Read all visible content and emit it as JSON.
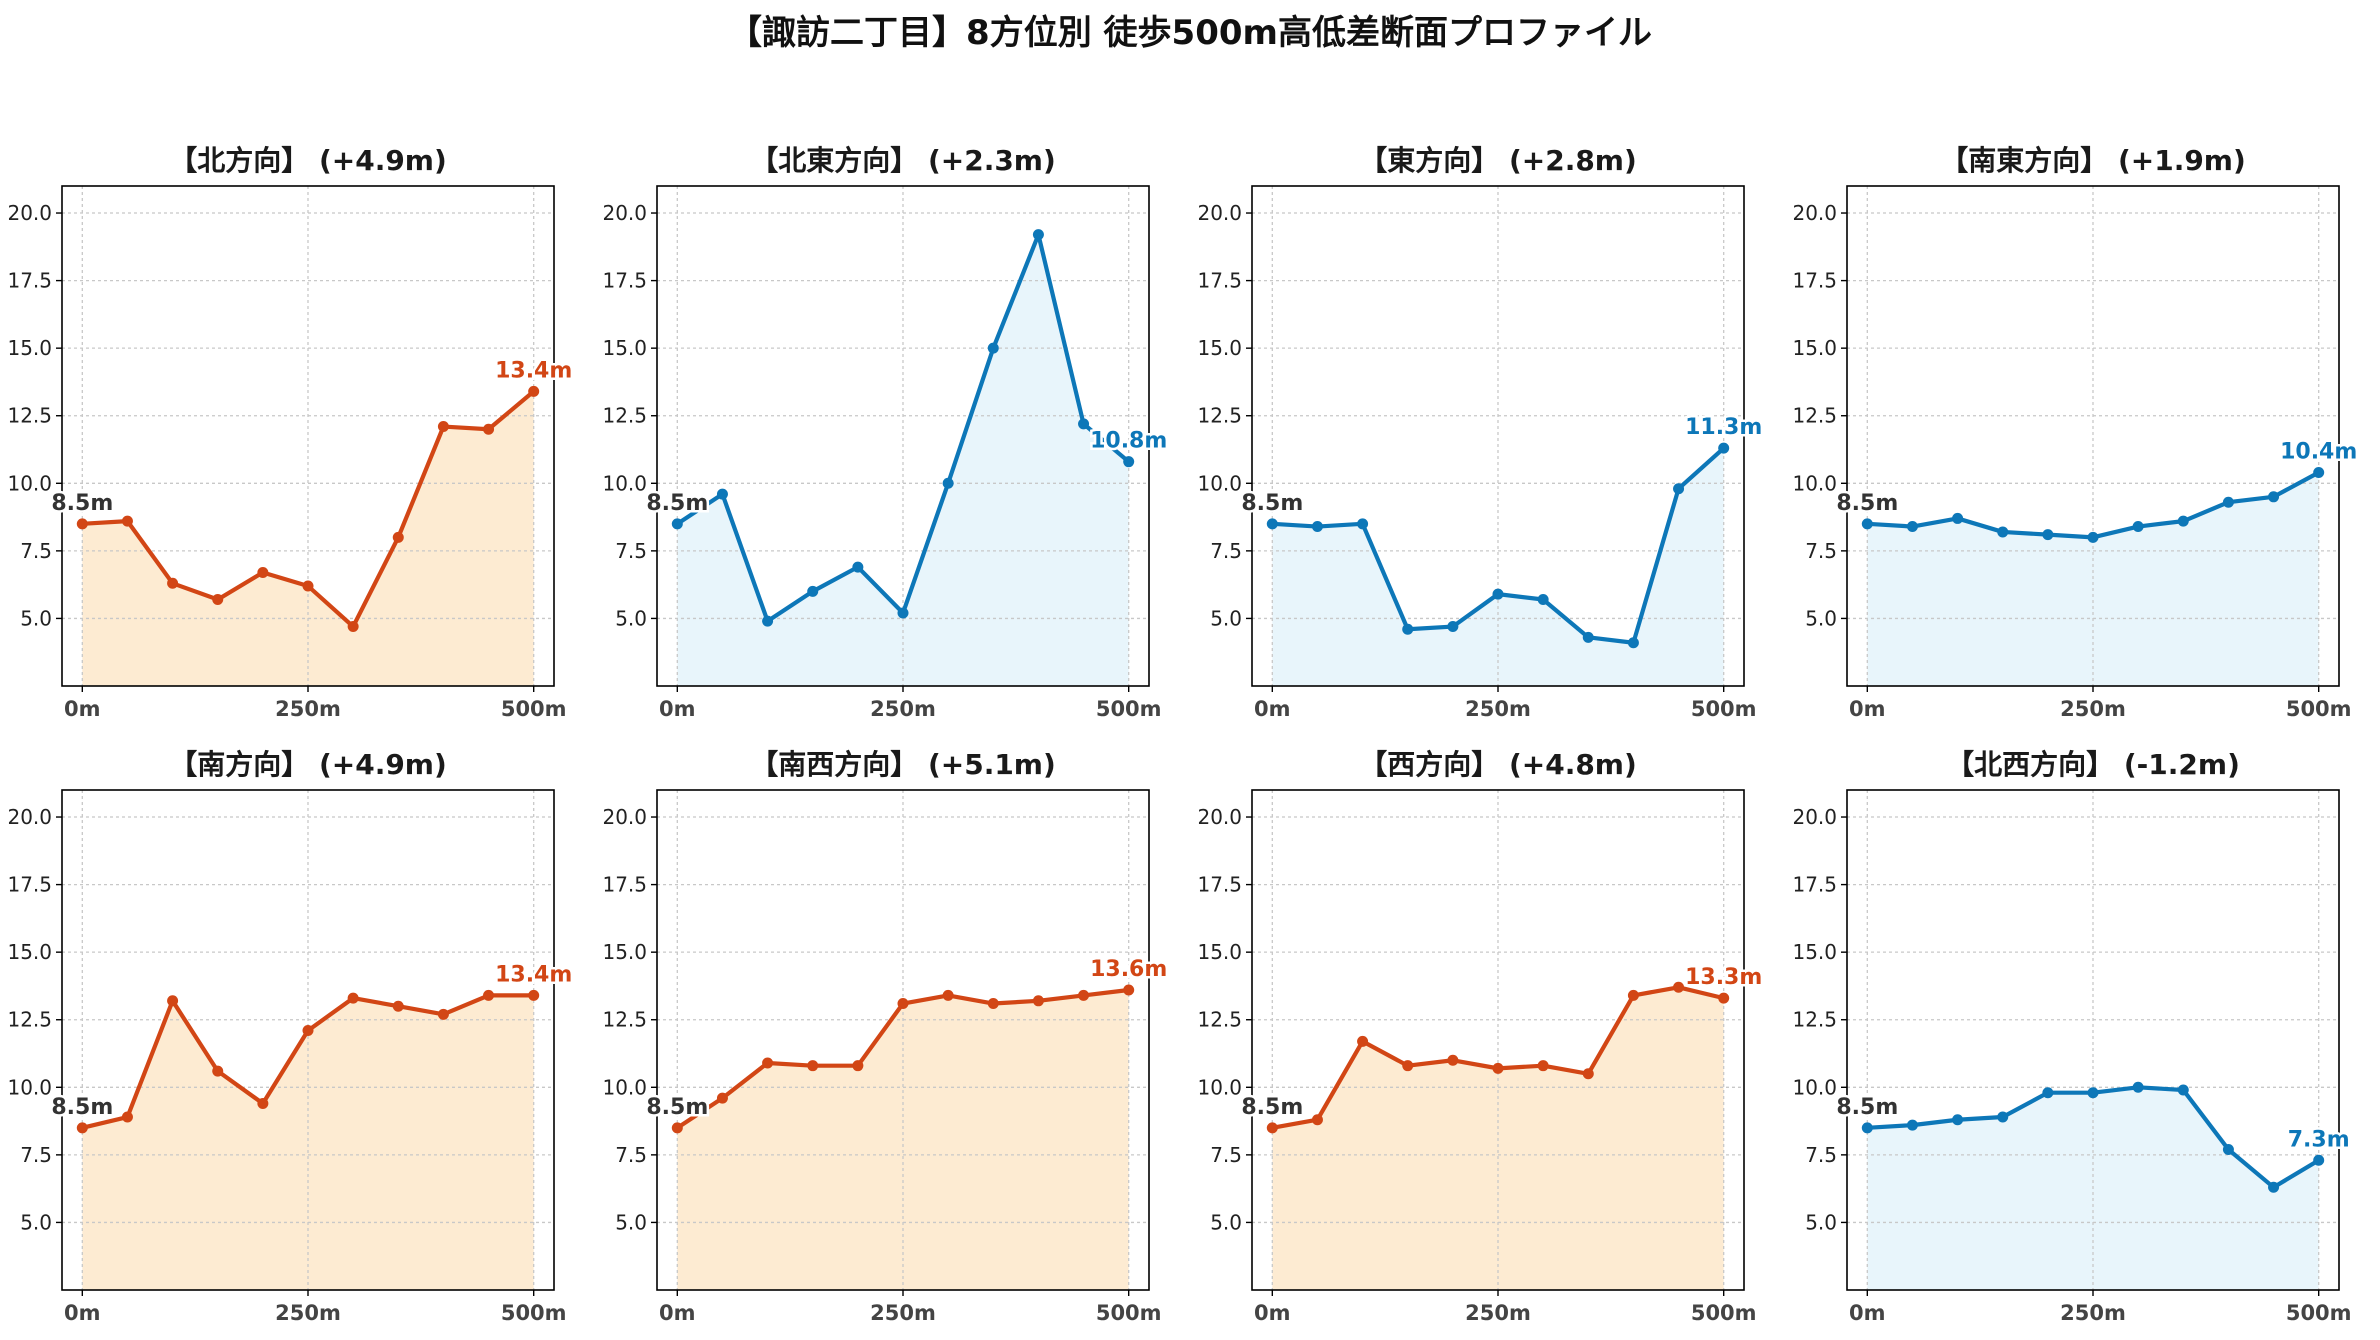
{
  "title": "【諏訪二丁目】8方位別 徒歩500m高低差断面プロファイル",
  "colors": {
    "up_line": "#D24615",
    "up_fill": "#FDEBD2",
    "down_line": "#0D77B8",
    "down_fill": "#E8F5FB",
    "start_label": "#333333"
  },
  "chart_data": [
    {
      "type": "area",
      "title": "【北方向】 (+4.9m)",
      "trend": "up",
      "x": [
        0,
        50,
        100,
        150,
        200,
        250,
        300,
        350,
        400,
        450,
        500
      ],
      "values": [
        8.5,
        8.6,
        6.3,
        5.7,
        6.7,
        6.2,
        4.7,
        8.0,
        12.1,
        12.0,
        13.4
      ],
      "start_label": "8.5m",
      "end_label": "13.4m",
      "ylim": [
        2.5,
        21.0
      ],
      "yticks": [
        "5.0",
        "7.5",
        "10.0",
        "12.5",
        "15.0",
        "17.5",
        "20.0"
      ],
      "xticks": [
        "0m",
        "250m",
        "500m"
      ],
      "grid": true
    },
    {
      "type": "area",
      "title": "【北東方向】 (+2.3m)",
      "trend": "down",
      "x": [
        0,
        50,
        100,
        150,
        200,
        250,
        300,
        350,
        400,
        450,
        500
      ],
      "values": [
        8.5,
        9.6,
        4.9,
        6.0,
        6.9,
        5.2,
        10.0,
        15.0,
        19.2,
        12.2,
        10.8
      ],
      "start_label": "8.5m",
      "end_label": "10.8m",
      "ylim": [
        2.5,
        21.0
      ],
      "yticks": [
        "5.0",
        "7.5",
        "10.0",
        "12.5",
        "15.0",
        "17.5",
        "20.0"
      ],
      "xticks": [
        "0m",
        "250m",
        "500m"
      ],
      "grid": true
    },
    {
      "type": "area",
      "title": "【東方向】 (+2.8m)",
      "trend": "down",
      "x": [
        0,
        50,
        100,
        150,
        200,
        250,
        300,
        350,
        400,
        450,
        500
      ],
      "values": [
        8.5,
        8.4,
        8.5,
        4.6,
        4.7,
        5.9,
        5.7,
        4.3,
        4.1,
        9.8,
        11.3
      ],
      "start_label": "8.5m",
      "end_label": "11.3m",
      "ylim": [
        2.5,
        21.0
      ],
      "yticks": [
        "5.0",
        "7.5",
        "10.0",
        "12.5",
        "15.0",
        "17.5",
        "20.0"
      ],
      "xticks": [
        "0m",
        "250m",
        "500m"
      ],
      "grid": true
    },
    {
      "type": "area",
      "title": "【南東方向】 (+1.9m)",
      "trend": "down",
      "x": [
        0,
        50,
        100,
        150,
        200,
        250,
        300,
        350,
        400,
        450,
        500
      ],
      "values": [
        8.5,
        8.4,
        8.7,
        8.2,
        8.1,
        8.0,
        8.4,
        8.6,
        9.3,
        9.5,
        10.4
      ],
      "start_label": "8.5m",
      "end_label": "10.4m",
      "ylim": [
        2.5,
        21.0
      ],
      "yticks": [
        "5.0",
        "7.5",
        "10.0",
        "12.5",
        "15.0",
        "17.5",
        "20.0"
      ],
      "xticks": [
        "0m",
        "250m",
        "500m"
      ],
      "grid": true
    },
    {
      "type": "area",
      "title": "【南方向】 (+4.9m)",
      "trend": "up",
      "x": [
        0,
        50,
        100,
        150,
        200,
        250,
        300,
        350,
        400,
        450,
        500
      ],
      "values": [
        8.5,
        8.9,
        13.2,
        10.6,
        9.4,
        12.1,
        13.3,
        13.0,
        12.7,
        13.4,
        13.4
      ],
      "start_label": "8.5m",
      "end_label": "13.4m",
      "ylim": [
        2.5,
        21.0
      ],
      "yticks": [
        "5.0",
        "7.5",
        "10.0",
        "12.5",
        "15.0",
        "17.5",
        "20.0"
      ],
      "xticks": [
        "0m",
        "250m",
        "500m"
      ],
      "grid": true
    },
    {
      "type": "area",
      "title": "【南西方向】 (+5.1m)",
      "trend": "up",
      "x": [
        0,
        50,
        100,
        150,
        200,
        250,
        300,
        350,
        400,
        450,
        500
      ],
      "values": [
        8.5,
        9.6,
        10.9,
        10.8,
        10.8,
        13.1,
        13.4,
        13.1,
        13.2,
        13.4,
        13.6
      ],
      "start_label": "8.5m",
      "end_label": "13.6m",
      "ylim": [
        2.5,
        21.0
      ],
      "yticks": [
        "5.0",
        "7.5",
        "10.0",
        "12.5",
        "15.0",
        "17.5",
        "20.0"
      ],
      "xticks": [
        "0m",
        "250m",
        "500m"
      ],
      "grid": true
    },
    {
      "type": "area",
      "title": "【西方向】 (+4.8m)",
      "trend": "up",
      "x": [
        0,
        50,
        100,
        150,
        200,
        250,
        300,
        350,
        400,
        450,
        500
      ],
      "values": [
        8.5,
        8.8,
        11.7,
        10.8,
        11.0,
        10.7,
        10.8,
        10.5,
        13.4,
        13.7,
        13.3
      ],
      "start_label": "8.5m",
      "end_label": "13.3m",
      "ylim": [
        2.5,
        21.0
      ],
      "yticks": [
        "5.0",
        "7.5",
        "10.0",
        "12.5",
        "15.0",
        "17.5",
        "20.0"
      ],
      "xticks": [
        "0m",
        "250m",
        "500m"
      ],
      "grid": true
    },
    {
      "type": "area",
      "title": "【北西方向】 (-1.2m)",
      "trend": "down",
      "x": [
        0,
        50,
        100,
        150,
        200,
        250,
        300,
        350,
        400,
        450,
        500
      ],
      "values": [
        8.5,
        8.6,
        8.8,
        8.9,
        9.8,
        9.8,
        10.0,
        9.9,
        7.7,
        6.3,
        7.3
      ],
      "start_label": "8.5m",
      "end_label": "7.3m",
      "ylim": [
        2.5,
        21.0
      ],
      "yticks": [
        "5.0",
        "7.5",
        "10.0",
        "12.5",
        "15.0",
        "17.5",
        "20.0"
      ],
      "xticks": [
        "0m",
        "250m",
        "500m"
      ],
      "grid": true
    }
  ]
}
